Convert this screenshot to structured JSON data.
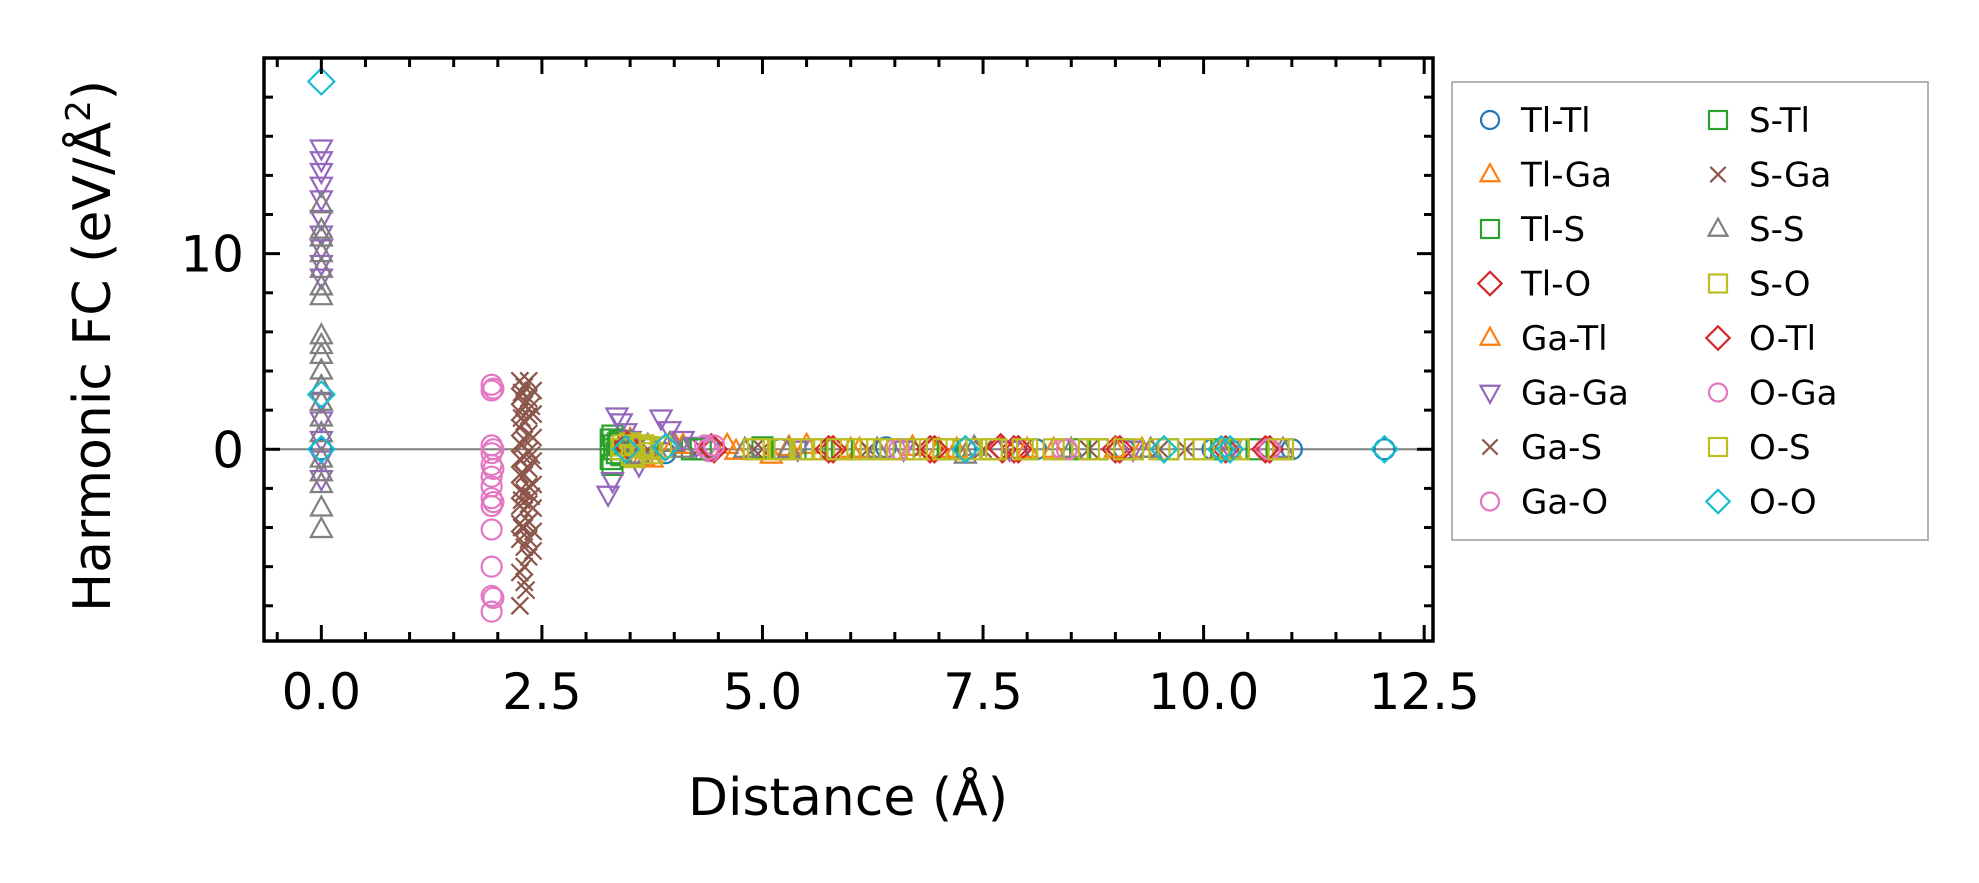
{
  "chart_data": {
    "type": "scatter",
    "title": "",
    "xlabel": "Distance (Å)",
    "ylabel": "Harmonic FC (eV/Å²)",
    "ylabel_main": "Harmonic FC (eV/Å",
    "ylabel_sup": "2",
    "ylabel_close": ")",
    "xlim": [
      -0.65,
      12.6
    ],
    "ylim": [
      -9.8,
      20.0
    ],
    "xticks": [
      0.0,
      2.5,
      5.0,
      7.5,
      10.0,
      12.5
    ],
    "xtick_labels": [
      "0.0",
      "2.5",
      "5.0",
      "7.5",
      "10.0",
      "12.5"
    ],
    "yticks": [
      0,
      10
    ],
    "ytick_labels": [
      "0",
      "10"
    ],
    "x_minor_step": 0.5,
    "y_minor_step": 2,
    "reference_line_y": 0,
    "legend_position": "outside-right",
    "legend_columns": 2,
    "series": [
      {
        "name": "Tl-Tl",
        "marker": "circle",
        "color": "#1f77b4",
        "points": [
          [
            0,
            0
          ],
          [
            3.45,
            0.2
          ],
          [
            3.9,
            -0.2
          ],
          [
            4.4,
            0.1
          ],
          [
            5.2,
            0
          ],
          [
            6.4,
            0.1
          ],
          [
            7.3,
            0
          ],
          [
            8.1,
            0
          ],
          [
            9.1,
            0
          ],
          [
            10.1,
            0
          ],
          [
            11.0,
            0
          ],
          [
            12.05,
            0
          ]
        ]
      },
      {
        "name": "Tl-Ga",
        "marker": "triangle-up",
        "color": "#ff7f0e",
        "points": [
          [
            3.5,
            0.5
          ],
          [
            3.65,
            -0.4
          ],
          [
            4.0,
            0.3
          ],
          [
            4.6,
            0.2
          ],
          [
            5.1,
            -0.3
          ],
          [
            5.5,
            0.2
          ],
          [
            6.0,
            0
          ],
          [
            6.7,
            0.1
          ],
          [
            7.2,
            0
          ],
          [
            8.3,
            0
          ],
          [
            9.3,
            0
          ],
          [
            10.3,
            0
          ]
        ]
      },
      {
        "name": "Tl-S",
        "marker": "square",
        "color": "#2ca02c",
        "points": [
          [
            3.3,
            0.7
          ],
          [
            3.3,
            -0.8
          ],
          [
            3.32,
            0.2
          ],
          [
            3.35,
            -0.2
          ],
          [
            3.38,
            0.4
          ],
          [
            3.7,
            0.1
          ],
          [
            4.2,
            0
          ],
          [
            5.0,
            0.1
          ],
          [
            5.6,
            0
          ],
          [
            6.6,
            0
          ],
          [
            7.6,
            0
          ],
          [
            8.6,
            0
          ],
          [
            9.6,
            0
          ],
          [
            10.6,
            0
          ]
        ]
      },
      {
        "name": "Tl-O",
        "marker": "diamond",
        "color": "#d62728",
        "points": [
          [
            3.45,
            0.3
          ],
          [
            4.45,
            0
          ],
          [
            5.8,
            0
          ],
          [
            6.9,
            0
          ],
          [
            7.7,
            0.1
          ],
          [
            7.85,
            0
          ],
          [
            9.0,
            0
          ],
          [
            10.25,
            0
          ],
          [
            10.75,
            0
          ]
        ]
      },
      {
        "name": "Ga-Tl",
        "marker": "triangle-up",
        "color": "#ff7f0e",
        "points": [
          [
            3.55,
            0.3
          ],
          [
            3.75,
            -0.5
          ],
          [
            4.1,
            0.2
          ],
          [
            4.7,
            -0.1
          ],
          [
            5.3,
            0.1
          ],
          [
            6.1,
            0
          ],
          [
            7.0,
            0
          ],
          [
            8.0,
            0
          ],
          [
            9.0,
            0
          ]
        ]
      },
      {
        "name": "Ga-Ga",
        "marker": "triangle-down",
        "color": "#9467bd",
        "points": [
          [
            0,
            15.4
          ],
          [
            0,
            14.8
          ],
          [
            0,
            14.2
          ],
          [
            0,
            13.5
          ],
          [
            0,
            12.8
          ],
          [
            0,
            11.8
          ],
          [
            0,
            11.0
          ],
          [
            0,
            10.3
          ],
          [
            0,
            9.5
          ],
          [
            0,
            8.8
          ],
          [
            0,
            2.5
          ],
          [
            0,
            1.5
          ],
          [
            0,
            0.5
          ],
          [
            0,
            -0.5
          ],
          [
            0,
            -1.5
          ],
          [
            3.25,
            -2.3
          ],
          [
            3.3,
            -1.6
          ],
          [
            3.35,
            1.7
          ],
          [
            3.4,
            1.4
          ],
          [
            3.45,
            0.9
          ],
          [
            3.5,
            0.5
          ],
          [
            3.55,
            -0.4
          ],
          [
            3.6,
            -0.8
          ],
          [
            3.85,
            1.6
          ],
          [
            3.95,
            1.0
          ],
          [
            4.1,
            0.5
          ],
          [
            4.25,
            0.2
          ],
          [
            5.4,
            0
          ],
          [
            6.6,
            0
          ],
          [
            7.8,
            0
          ],
          [
            9.2,
            0
          ],
          [
            10.3,
            0
          ]
        ]
      },
      {
        "name": "Ga-S",
        "marker": "x",
        "color": "#8c564b",
        "points": [
          [
            2.25,
            3.5
          ],
          [
            2.25,
            2.7
          ],
          [
            2.25,
            1.9
          ],
          [
            2.25,
            1.1
          ],
          [
            2.25,
            0.3
          ],
          [
            2.25,
            -0.5
          ],
          [
            2.25,
            -1.3
          ],
          [
            2.25,
            -2.1
          ],
          [
            2.25,
            -2.9
          ],
          [
            2.25,
            -3.8
          ],
          [
            2.25,
            -4.6
          ],
          [
            2.25,
            -6.3
          ],
          [
            2.25,
            -8.0
          ],
          [
            2.3,
            3.2
          ],
          [
            2.3,
            2.3
          ],
          [
            2.3,
            1.4
          ],
          [
            2.3,
            0.5
          ],
          [
            2.3,
            -0.4
          ],
          [
            2.3,
            -1.3
          ],
          [
            2.3,
            -2.2
          ],
          [
            2.3,
            -3.1
          ],
          [
            2.3,
            -4.0
          ],
          [
            2.3,
            -5.0
          ],
          [
            2.3,
            -6.0
          ],
          [
            2.3,
            -6.8
          ],
          [
            2.35,
            3.5
          ],
          [
            2.35,
            2.6
          ],
          [
            2.35,
            1.7
          ],
          [
            2.35,
            0.8
          ],
          [
            2.35,
            -0.1
          ],
          [
            2.35,
            -1.0
          ],
          [
            2.35,
            -1.9
          ],
          [
            2.35,
            -2.8
          ],
          [
            2.35,
            -3.7
          ],
          [
            2.35,
            -4.6
          ],
          [
            2.35,
            -5.5
          ],
          [
            2.4,
            3.0
          ],
          [
            2.4,
            1.8
          ],
          [
            2.4,
            0.6
          ],
          [
            2.4,
            -0.6
          ],
          [
            2.4,
            -1.8
          ],
          [
            2.4,
            -3.0
          ],
          [
            2.4,
            -4.2
          ],
          [
            2.4,
            -5.2
          ],
          [
            3.6,
            0.3
          ],
          [
            4.3,
            0.1
          ],
          [
            4.9,
            0
          ],
          [
            6.2,
            0
          ],
          [
            7.5,
            0
          ],
          [
            8.7,
            0
          ],
          [
            9.8,
            0
          ]
        ]
      },
      {
        "name": "Ga-O",
        "marker": "circle",
        "color": "#e377c2",
        "points": [
          [
            1.93,
            3.3
          ],
          [
            1.93,
            3.0
          ],
          [
            1.93,
            0.2
          ],
          [
            1.93,
            -0.2
          ],
          [
            1.93,
            -0.8
          ],
          [
            1.93,
            -1.4
          ],
          [
            1.93,
            -1.9
          ],
          [
            1.93,
            -2.5
          ],
          [
            1.93,
            -2.9
          ],
          [
            1.93,
            -4.1
          ],
          [
            1.93,
            -6.0
          ],
          [
            1.93,
            -7.5
          ],
          [
            1.93,
            -8.3
          ],
          [
            4.35,
            0.2
          ],
          [
            4.4,
            -0.1
          ],
          [
            6.5,
            0
          ],
          [
            8.4,
            0
          ],
          [
            10.7,
            0
          ]
        ]
      },
      {
        "name": "S-Tl",
        "marker": "square",
        "color": "#2ca02c",
        "points": [
          [
            3.28,
            0.5
          ],
          [
            3.28,
            -0.5
          ],
          [
            3.32,
            0
          ],
          [
            3.36,
            0.3
          ],
          [
            3.4,
            -0.3
          ],
          [
            4.3,
            0
          ],
          [
            5.9,
            0
          ],
          [
            7.1,
            0
          ],
          [
            8.8,
            0
          ],
          [
            10.2,
            0
          ]
        ]
      },
      {
        "name": "S-Ga",
        "marker": "x",
        "color": "#8c564b",
        "points": [
          [
            2.27,
            2.9
          ],
          [
            2.27,
            1.6
          ],
          [
            2.27,
            0.2
          ],
          [
            2.27,
            -1.2
          ],
          [
            2.27,
            -2.6
          ],
          [
            2.27,
            -4.0
          ],
          [
            2.32,
            -7.2
          ],
          [
            2.38,
            2.2
          ],
          [
            2.38,
            -0.3
          ],
          [
            2.38,
            -2.4
          ],
          [
            3.7,
            0
          ],
          [
            5.0,
            0
          ],
          [
            6.8,
            0
          ],
          [
            9.5,
            0
          ]
        ]
      },
      {
        "name": "S-S",
        "marker": "triangle-up",
        "color": "#7f7f7f",
        "points": [
          [
            0,
            12.5
          ],
          [
            0,
            11.2
          ],
          [
            0,
            10.8
          ],
          [
            0,
            10.0
          ],
          [
            0,
            9.2
          ],
          [
            0,
            8.3
          ],
          [
            0,
            7.8
          ],
          [
            0,
            5.8
          ],
          [
            0,
            5.3
          ],
          [
            0,
            4.8
          ],
          [
            0,
            4.0
          ],
          [
            0,
            3.2
          ],
          [
            0,
            2.4
          ],
          [
            0,
            1.6
          ],
          [
            0,
            0.8
          ],
          [
            0,
            -0.5
          ],
          [
            0,
            -1.2
          ],
          [
            0,
            -1.8
          ],
          [
            0,
            -3.0
          ],
          [
            0,
            -4.1
          ],
          [
            3.5,
            0.4
          ],
          [
            3.6,
            -0.3
          ],
          [
            3.7,
            0.2
          ],
          [
            3.8,
            -0.1
          ],
          [
            3.95,
            0.3
          ],
          [
            4.1,
            0
          ],
          [
            4.8,
            0
          ],
          [
            5.3,
            0
          ],
          [
            6.3,
            0
          ],
          [
            7.3,
            -0.3
          ],
          [
            7.4,
            0.1
          ],
          [
            8.5,
            0
          ],
          [
            9.4,
            0
          ],
          [
            10.2,
            0
          ],
          [
            10.9,
            0
          ]
        ]
      },
      {
        "name": "S-O",
        "marker": "square",
        "color": "#bcbd22",
        "points": [
          [
            3.4,
            0
          ],
          [
            3.5,
            0.3
          ],
          [
            3.55,
            -0.4
          ],
          [
            3.65,
            0.2
          ],
          [
            3.75,
            -0.2
          ],
          [
            3.85,
            0.1
          ],
          [
            4.9,
            0
          ],
          [
            5.2,
            0
          ],
          [
            5.45,
            0
          ],
          [
            5.7,
            0
          ],
          [
            6.0,
            0
          ],
          [
            6.3,
            0
          ],
          [
            6.6,
            0
          ],
          [
            6.9,
            0
          ],
          [
            7.2,
            0
          ],
          [
            7.6,
            0
          ],
          [
            8.0,
            0
          ],
          [
            8.4,
            0
          ],
          [
            8.8,
            0
          ],
          [
            9.2,
            0
          ],
          [
            9.6,
            0
          ],
          [
            10.0,
            0
          ],
          [
            10.4,
            0
          ],
          [
            10.9,
            0
          ]
        ]
      },
      {
        "name": "O-Tl",
        "marker": "diamond",
        "color": "#d62728",
        "points": [
          [
            3.47,
            0.2
          ],
          [
            4.42,
            0.1
          ],
          [
            5.75,
            0
          ],
          [
            6.95,
            0
          ],
          [
            7.72,
            0
          ],
          [
            7.9,
            0
          ],
          [
            9.05,
            0
          ],
          [
            10.7,
            0
          ]
        ]
      },
      {
        "name": "O-Ga",
        "marker": "circle",
        "color": "#e377c2",
        "points": [
          [
            1.95,
            3.1
          ],
          [
            1.95,
            0
          ],
          [
            1.95,
            -1.0
          ],
          [
            1.95,
            -2.7
          ],
          [
            1.95,
            -7.6
          ],
          [
            4.38,
            0
          ],
          [
            4.45,
            0.2
          ],
          [
            6.55,
            0
          ],
          [
            8.45,
            0
          ],
          [
            10.75,
            0
          ]
        ]
      },
      {
        "name": "O-S",
        "marker": "square",
        "color": "#bcbd22",
        "points": [
          [
            3.42,
            0.2
          ],
          [
            3.52,
            -0.3
          ],
          [
            3.62,
            0.1
          ],
          [
            3.72,
            0
          ],
          [
            4.95,
            0
          ],
          [
            5.25,
            0
          ],
          [
            5.55,
            0
          ],
          [
            5.85,
            0
          ],
          [
            6.15,
            0
          ],
          [
            6.45,
            0
          ],
          [
            6.75,
            0
          ],
          [
            7.05,
            0
          ],
          [
            7.35,
            0
          ],
          [
            7.65,
            0
          ],
          [
            7.95,
            0
          ],
          [
            8.3,
            0
          ],
          [
            8.7,
            0
          ],
          [
            9.1,
            0
          ],
          [
            9.5,
            0
          ],
          [
            9.9,
            0
          ],
          [
            10.3,
            0
          ],
          [
            10.85,
            0
          ]
        ]
      },
      {
        "name": "O-O",
        "marker": "diamond",
        "color": "#17becf",
        "points": [
          [
            0,
            18.8
          ],
          [
            0,
            2.8
          ],
          [
            0,
            0
          ],
          [
            3.45,
            0
          ],
          [
            3.9,
            0.1
          ],
          [
            7.3,
            0
          ],
          [
            9.55,
            0
          ],
          [
            10.2,
            0
          ],
          [
            10.3,
            0
          ],
          [
            12.05,
            0
          ]
        ]
      }
    ]
  }
}
